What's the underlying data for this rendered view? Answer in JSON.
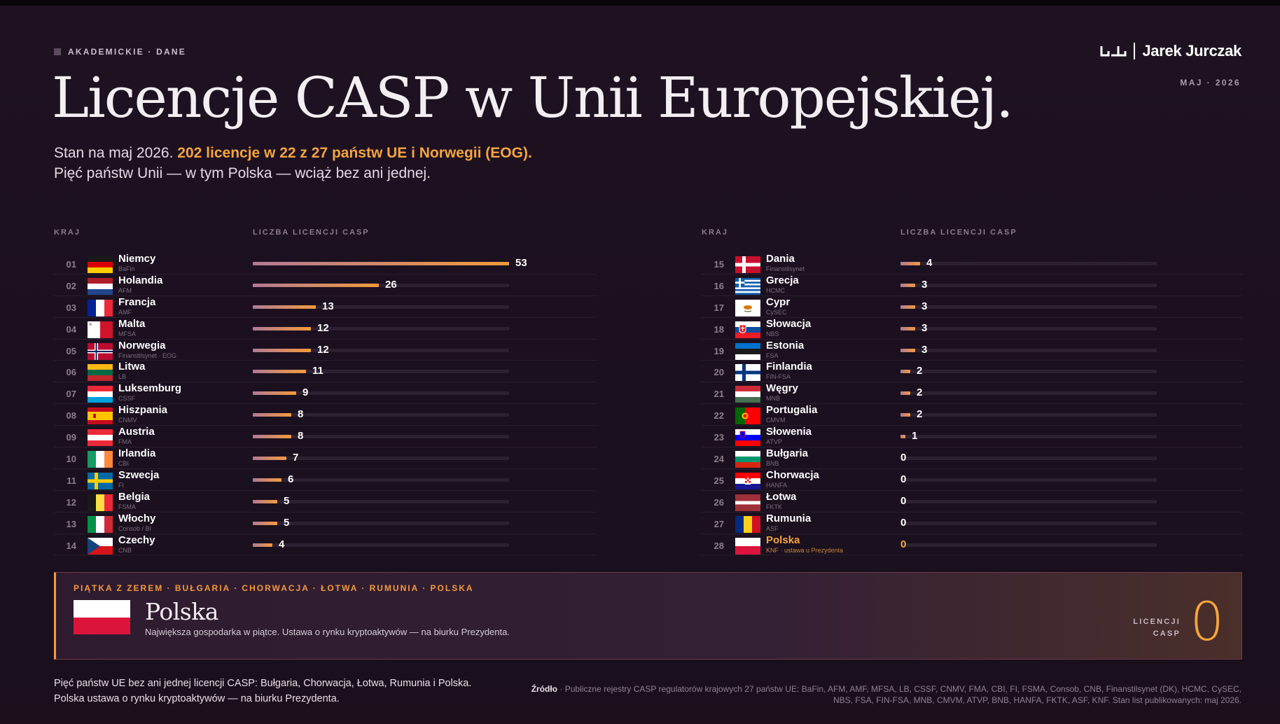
{
  "header": {
    "eyebrow": "AKADEMICKIE · DANE",
    "brand": "Jarek Jurczak",
    "date": "MAJ · 2026",
    "title": "Licencje CASP w Unii Europejskiej.",
    "subtitle_plain": "Stan na maj 2026. ",
    "subtitle_highlight": "202 licencje w 22 z 27 państw UE i Norwegii (EOG).",
    "subtitle_line2": "Pięć państw Unii — w tym Polska — wciąż bez ani jednej."
  },
  "table_headers": {
    "country": "KRAJ",
    "count": "LICZBA LICENCJI CASP"
  },
  "colors": {
    "accent": "#f39a3b",
    "bar_start": "#b27a94",
    "track": "#2c2130",
    "background": "#1e1221"
  },
  "chart_data": {
    "type": "bar",
    "orientation": "horizontal",
    "xlim": [
      0,
      53
    ],
    "highlight": "Polska",
    "rows": [
      {
        "rank": "01",
        "country": "Niemcy",
        "regulator": "BaFin",
        "value": 53,
        "flag": "de"
      },
      {
        "rank": "02",
        "country": "Holandia",
        "regulator": "AFM",
        "value": 26,
        "flag": "nl"
      },
      {
        "rank": "03",
        "country": "Francja",
        "regulator": "AMF",
        "value": 13,
        "flag": "fr"
      },
      {
        "rank": "04",
        "country": "Malta",
        "regulator": "MFSA",
        "value": 12,
        "flag": "mt"
      },
      {
        "rank": "05",
        "country": "Norwegia",
        "regulator": "Finanstilsynet · EOG",
        "value": 12,
        "flag": "no"
      },
      {
        "rank": "06",
        "country": "Litwa",
        "regulator": "LB",
        "value": 11,
        "flag": "lt"
      },
      {
        "rank": "07",
        "country": "Luksemburg",
        "regulator": "CSSF",
        "value": 9,
        "flag": "lu"
      },
      {
        "rank": "08",
        "country": "Hiszpania",
        "regulator": "CNMV",
        "value": 8,
        "flag": "es"
      },
      {
        "rank": "09",
        "country": "Austria",
        "regulator": "FMA",
        "value": 8,
        "flag": "at"
      },
      {
        "rank": "10",
        "country": "Irlandia",
        "regulator": "CBI",
        "value": 7,
        "flag": "ie"
      },
      {
        "rank": "11",
        "country": "Szwecja",
        "regulator": "FI",
        "value": 6,
        "flag": "se"
      },
      {
        "rank": "12",
        "country": "Belgia",
        "regulator": "FSMA",
        "value": 5,
        "flag": "be"
      },
      {
        "rank": "13",
        "country": "Włochy",
        "regulator": "Consob / BI",
        "value": 5,
        "flag": "it"
      },
      {
        "rank": "14",
        "country": "Czechy",
        "regulator": "CNB",
        "value": 4,
        "flag": "cz"
      },
      {
        "rank": "15",
        "country": "Dania",
        "regulator": "Finanstilsynet",
        "value": 4,
        "flag": "dk"
      },
      {
        "rank": "16",
        "country": "Grecja",
        "regulator": "HCMC",
        "value": 3,
        "flag": "gr"
      },
      {
        "rank": "17",
        "country": "Cypr",
        "regulator": "CySEC",
        "value": 3,
        "flag": "cy"
      },
      {
        "rank": "18",
        "country": "Słowacja",
        "regulator": "NBS",
        "value": 3,
        "flag": "sk"
      },
      {
        "rank": "19",
        "country": "Estonia",
        "regulator": "FSA",
        "value": 3,
        "flag": "ee"
      },
      {
        "rank": "20",
        "country": "Finlandia",
        "regulator": "FIN-FSA",
        "value": 2,
        "flag": "fi"
      },
      {
        "rank": "21",
        "country": "Węgry",
        "regulator": "MNB",
        "value": 2,
        "flag": "hu"
      },
      {
        "rank": "22",
        "country": "Portugalia",
        "regulator": "CMVM",
        "value": 2,
        "flag": "pt"
      },
      {
        "rank": "23",
        "country": "Słowenia",
        "regulator": "ATVP",
        "value": 1,
        "flag": "si"
      },
      {
        "rank": "24",
        "country": "Bułgaria",
        "regulator": "BNB",
        "value": 0,
        "flag": "bg"
      },
      {
        "rank": "25",
        "country": "Chorwacja",
        "regulator": "HANFA",
        "value": 0,
        "flag": "hr"
      },
      {
        "rank": "26",
        "country": "Łotwa",
        "regulator": "FKTK",
        "value": 0,
        "flag": "lv"
      },
      {
        "rank": "27",
        "country": "Rumunia",
        "regulator": "ASF",
        "value": 0,
        "flag": "ro"
      },
      {
        "rank": "28",
        "country": "Polska",
        "regulator": "KNF · ustawa u Prezydenta",
        "value": 0,
        "flag": "pl"
      }
    ]
  },
  "callout": {
    "tag": "PIĄTKA Z ZEREM · BUŁGARIA · CHORWACJA · ŁOTWA · RUMUNIA · POLSKA",
    "title": "Polska",
    "description": "Największa gospodarka w piątce. Ustawa o rynku kryptoaktywów — na biurku Prezydenta.",
    "label_line1": "LICENCJI",
    "label_line2": "CASP",
    "value": "0"
  },
  "footer": {
    "left_line1": "Pięć państw UE bez ani jednej licencji CASP: Bułgaria, Chorwacja, Łotwa, Rumunia i Polska.",
    "left_line2": "Polska ustawa o rynku kryptoaktywów — na biurku Prezydenta.",
    "source_label": "Źródło",
    "source_text": " · Publiczne rejestry CASP regulatorów krajowych 27 państw UE: BaFin, AFM, AMF, MFSA, LB, CSSF, CNMV, FMA, CBI, FI, FSMA, Consob, CNB, Finanstilsynet (DK), HCMC, CySEC, NBS, FSA, FIN-FSA, MNB, CMVM, ATVP, BNB, HANFA, FKTK, ASF, KNF. Stan list publikowanych: maj 2026."
  }
}
